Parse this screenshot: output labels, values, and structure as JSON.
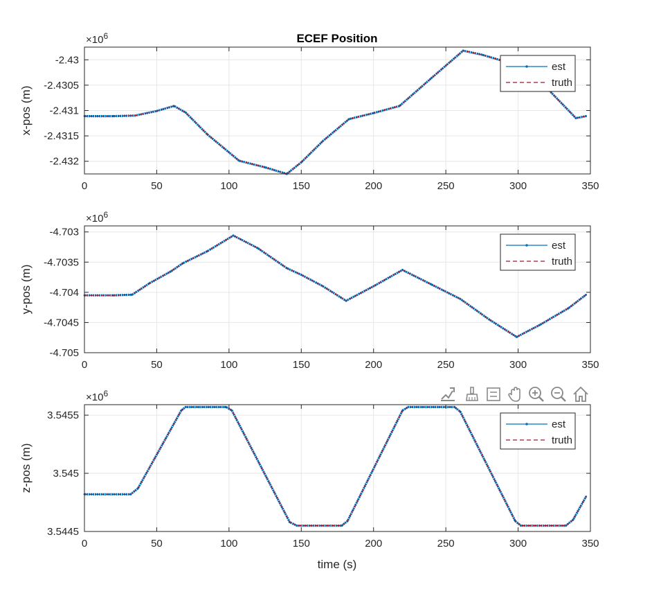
{
  "figure": {
    "title": "ECEF Position",
    "xlabel": "time (s)",
    "toolbar": {
      "icons": [
        "export-icon",
        "brush-icon",
        "legend-toggle-icon",
        "pan-icon",
        "zoom-in-icon",
        "zoom-out-icon",
        "home-icon"
      ]
    }
  },
  "colors": {
    "est": "#0072BD",
    "truth": "#A2142F",
    "grid": "#e6e6e6",
    "axis": "#262626"
  },
  "chart_data": [
    {
      "type": "line",
      "title": "ECEF Position",
      "xlabel": "",
      "ylabel": "x-pos (m)",
      "exponent": "×10^6",
      "exp_base": "×10",
      "exp_power": "6",
      "xlim": [
        0,
        350
      ],
      "ylim": [
        -2.43225,
        -2.42975
      ],
      "xticks": [
        0,
        50,
        100,
        150,
        200,
        250,
        300,
        350
      ],
      "yticks": [
        -2.432,
        -2.4315,
        -2.431,
        -2.4305,
        -2.43
      ],
      "ytick_labels": [
        "-2.432",
        "-2.4315",
        "-2.431",
        "-2.4305",
        "-2.43"
      ],
      "grid": true,
      "legend": {
        "position": "top-right",
        "entries": [
          "est",
          "truth"
        ]
      },
      "series": [
        {
          "name": "est",
          "style": "solid-dotted",
          "x": [
            0,
            20,
            35,
            50,
            62,
            70,
            85,
            107,
            125,
            140,
            150,
            165,
            183,
            200,
            218,
            240,
            262,
            275,
            300,
            320,
            340,
            347
          ],
          "y": [
            -2.43111,
            -2.43111,
            -2.4311,
            -2.43101,
            -2.43091,
            -2.43104,
            -2.43147,
            -2.43199,
            -2.43212,
            -2.43225,
            -2.43202,
            -2.4316,
            -2.43117,
            -2.43105,
            -2.43091,
            -2.43036,
            -2.42982,
            -2.4299,
            -2.43011,
            -2.43056,
            -2.43115,
            -2.43111
          ]
        },
        {
          "name": "truth",
          "style": "dashed",
          "x": [
            0,
            20,
            35,
            50,
            62,
            70,
            85,
            107,
            125,
            140,
            150,
            165,
            183,
            200,
            218,
            240,
            262,
            275,
            300,
            320,
            340,
            347
          ],
          "y": [
            -2.43111,
            -2.43111,
            -2.4311,
            -2.43101,
            -2.43091,
            -2.43104,
            -2.43147,
            -2.43199,
            -2.43212,
            -2.43225,
            -2.43202,
            -2.4316,
            -2.43117,
            -2.43105,
            -2.43091,
            -2.43036,
            -2.42982,
            -2.4299,
            -2.43011,
            -2.43056,
            -2.43115,
            -2.43111
          ]
        }
      ]
    },
    {
      "type": "line",
      "title": "",
      "xlabel": "",
      "ylabel": "y-pos (m)",
      "exponent": "×10^6",
      "exp_base": "×10",
      "exp_power": "6",
      "xlim": [
        0,
        350
      ],
      "ylim": [
        -4.705,
        -4.7029
      ],
      "xticks": [
        0,
        50,
        100,
        150,
        200,
        250,
        300,
        350
      ],
      "yticks": [
        -4.705,
        -4.7045,
        -4.704,
        -4.7035,
        -4.703
      ],
      "ytick_labels": [
        "-4.705",
        "-4.7045",
        "-4.704",
        "-4.7035",
        "-4.703"
      ],
      "grid": true,
      "legend": {
        "position": "top-right",
        "entries": [
          "est",
          "truth"
        ]
      },
      "series": [
        {
          "name": "est",
          "style": "solid-dotted",
          "x": [
            0,
            20,
            33,
            45,
            60,
            68,
            85,
            103,
            120,
            140,
            150,
            165,
            181,
            200,
            220,
            240,
            260,
            280,
            299,
            315,
            335,
            347
          ],
          "y": [
            -4.70405,
            -4.70405,
            -4.70404,
            -4.70385,
            -4.70365,
            -4.70352,
            -4.70332,
            -4.70306,
            -4.70327,
            -4.7036,
            -4.70371,
            -4.7039,
            -4.70414,
            -4.7039,
            -4.70363,
            -4.70387,
            -4.70411,
            -4.70445,
            -4.70474,
            -4.70454,
            -4.70426,
            -4.70404
          ]
        },
        {
          "name": "truth",
          "style": "dashed",
          "x": [
            0,
            20,
            33,
            45,
            60,
            68,
            85,
            103,
            120,
            140,
            150,
            165,
            181,
            200,
            220,
            240,
            260,
            280,
            299,
            315,
            335,
            347
          ],
          "y": [
            -4.70405,
            -4.70405,
            -4.70404,
            -4.70385,
            -4.70365,
            -4.70352,
            -4.70332,
            -4.70306,
            -4.70327,
            -4.7036,
            -4.70371,
            -4.7039,
            -4.70414,
            -4.7039,
            -4.70363,
            -4.70387,
            -4.70411,
            -4.70445,
            -4.70474,
            -4.70454,
            -4.70426,
            -4.70404
          ]
        }
      ]
    },
    {
      "type": "line",
      "title": "",
      "xlabel": "time (s)",
      "ylabel": "z-pos (m)",
      "exponent": "×10^6",
      "exp_base": "×10",
      "exp_power": "6",
      "xlim": [
        0,
        350
      ],
      "ylim": [
        3.5445,
        3.54559
      ],
      "xticks": [
        0,
        50,
        100,
        150,
        200,
        250,
        300,
        350
      ],
      "yticks": [
        3.5445,
        3.545,
        3.5455
      ],
      "ytick_labels": [
        "3.5445",
        "3.545",
        "3.5455"
      ],
      "grid": true,
      "legend": {
        "position": "top-right",
        "entries": [
          "est",
          "truth"
        ]
      },
      "series": [
        {
          "name": "est",
          "style": "solid-dotted",
          "x": [
            0,
            32,
            37,
            67,
            70,
            98,
            102,
            142,
            147,
            178,
            182,
            220,
            224,
            256,
            260,
            298,
            302,
            333,
            338,
            347
          ],
          "y": [
            3.54482,
            3.54482,
            3.54487,
            3.54554,
            3.54557,
            3.54557,
            3.54554,
            3.54458,
            3.54455,
            3.54455,
            3.54459,
            3.54554,
            3.54557,
            3.54557,
            3.54553,
            3.54459,
            3.54455,
            3.54455,
            3.5446,
            3.5448
          ]
        },
        {
          "name": "truth",
          "style": "dashed",
          "x": [
            0,
            32,
            37,
            67,
            70,
            98,
            102,
            142,
            147,
            178,
            182,
            220,
            224,
            256,
            260,
            298,
            302,
            333,
            338,
            347
          ],
          "y": [
            3.54482,
            3.54482,
            3.54487,
            3.54554,
            3.54557,
            3.54557,
            3.54554,
            3.54458,
            3.54455,
            3.54455,
            3.54459,
            3.54554,
            3.54557,
            3.54557,
            3.54553,
            3.54459,
            3.54455,
            3.54455,
            3.5446,
            3.5448
          ]
        }
      ]
    }
  ]
}
